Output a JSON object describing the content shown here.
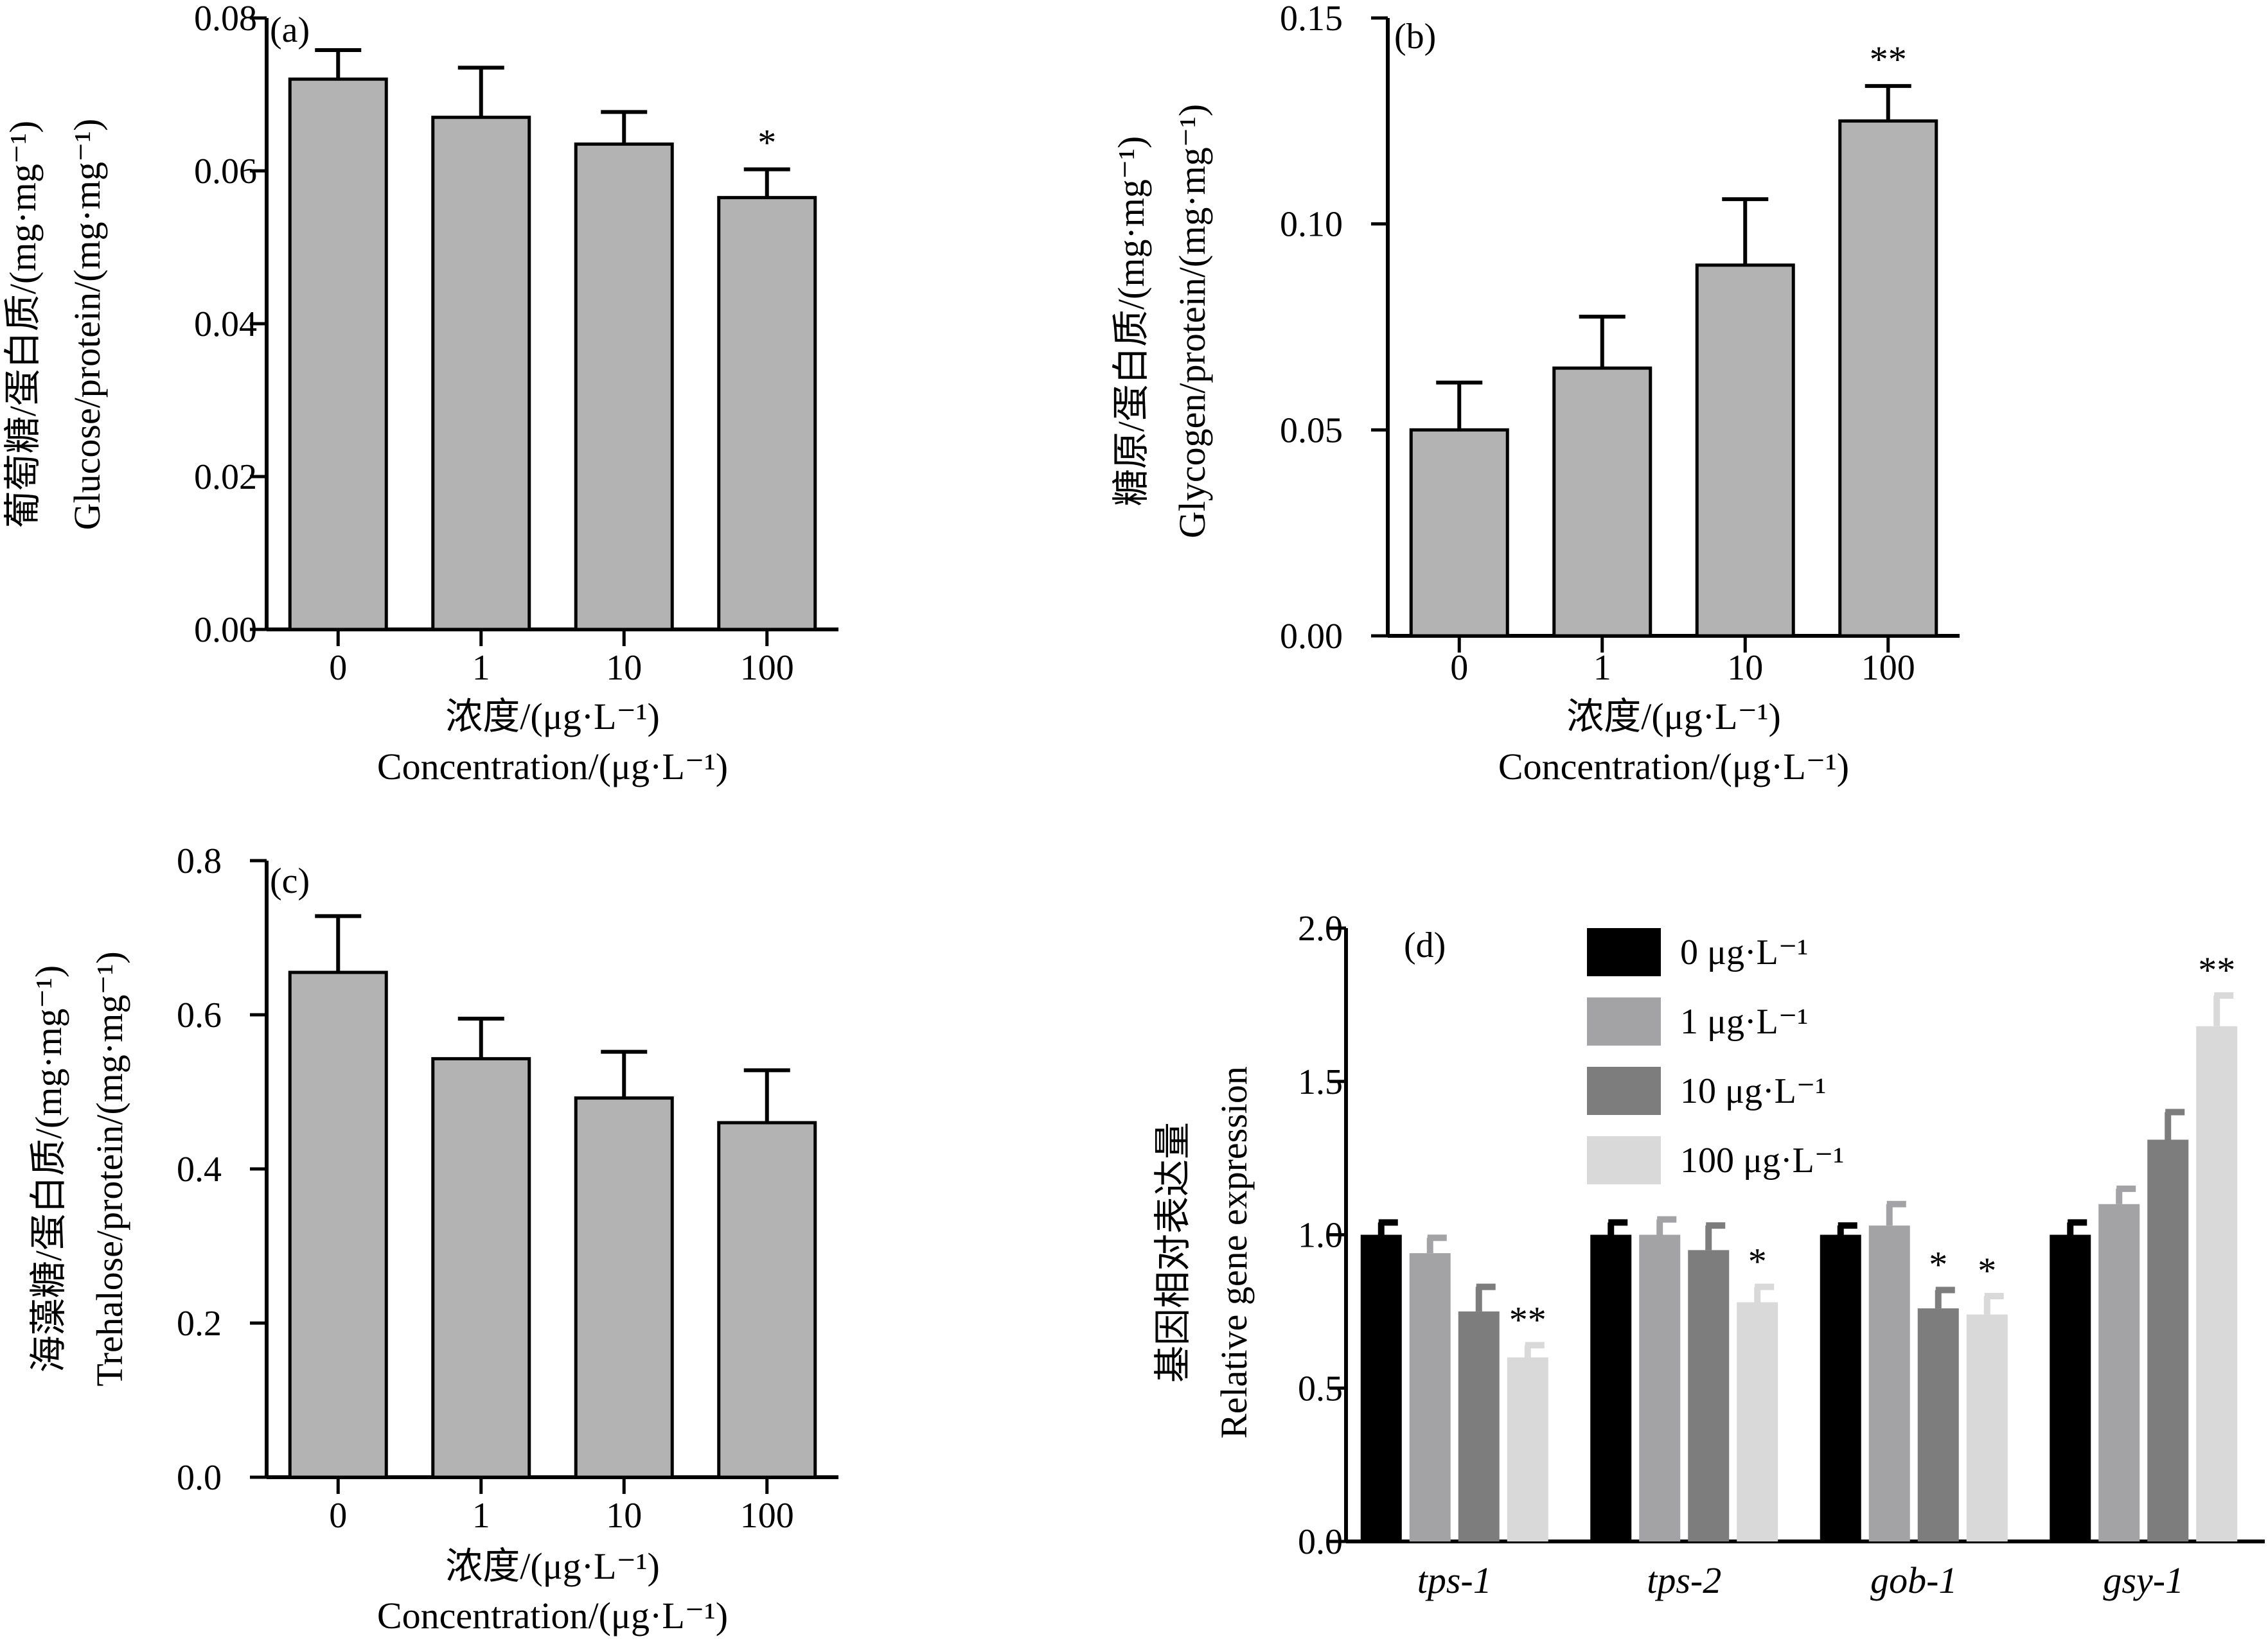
{
  "colors": {
    "bar": "#b3b3b3",
    "axis": "#000000"
  },
  "chart_data": [
    {
      "type": "bar",
      "panel": "(a)",
      "categories": [
        "0",
        "1",
        "10",
        "100"
      ],
      "values": [
        0.072,
        0.067,
        0.0635,
        0.0565
      ],
      "errors": [
        0.0038,
        0.0065,
        0.0042,
        0.0037
      ],
      "significance": [
        "",
        "",
        "",
        "*"
      ],
      "ylim": [
        0,
        0.08
      ],
      "yticks": [
        "0.00",
        "0.02",
        "0.04",
        "0.06",
        "0.08"
      ],
      "ylabel_cn": "葡萄糖/蛋白质/(mg·mg⁻¹)",
      "ylabel_en": "Glucose/protein/(mg·mg⁻¹)",
      "xlabel_cn": "浓度/(μg·L⁻¹)",
      "xlabel_en": "Concentration/(μg·L⁻¹)"
    },
    {
      "type": "bar",
      "panel": "(b)",
      "categories": [
        "0",
        "1",
        "10",
        "100"
      ],
      "values": [
        0.05,
        0.065,
        0.09,
        0.125
      ],
      "errors": [
        0.0115,
        0.0125,
        0.016,
        0.0085
      ],
      "significance": [
        "",
        "",
        "",
        "**"
      ],
      "ylim": [
        0,
        0.15
      ],
      "yticks": [
        "0.00",
        "0.05",
        "0.10",
        "0.15"
      ],
      "ylabel_cn": "糖原/蛋白质/(mg·mg⁻¹)",
      "ylabel_en": "Glycogen/protein/(mg·mg⁻¹)",
      "xlabel_cn": "浓度/(μg·L⁻¹)",
      "xlabel_en": "Concentration/(μg·L⁻¹)"
    },
    {
      "type": "bar",
      "panel": "(c)",
      "categories": [
        "0",
        "1",
        "10",
        "100"
      ],
      "values": [
        0.655,
        0.543,
        0.492,
        0.46
      ],
      "errors": [
        0.073,
        0.052,
        0.06,
        0.068
      ],
      "significance": [
        "",
        "",
        "",
        ""
      ],
      "ylim": [
        0,
        0.8
      ],
      "yticks": [
        "0.0",
        "0.2",
        "0.4",
        "0.6",
        "0.8"
      ],
      "ylabel_cn": "海藻糖/蛋白质/(mg·mg⁻¹)",
      "ylabel_en": "Trehalose/protein/(mg·mg⁻¹)",
      "xlabel_cn": "浓度/(μg·L⁻¹)",
      "xlabel_en": "Concentration/(μg·L⁻¹)"
    },
    {
      "type": "grouped-bar",
      "panel": "(d)",
      "categories": [
        "tps-1",
        "tps-2",
        "gob-1",
        "gsy-1"
      ],
      "series": [
        {
          "name": "0 μg·L⁻¹",
          "color": "#000000",
          "values": [
            1.0,
            1.0,
            1.0,
            1.0
          ],
          "errors": [
            0.04,
            0.04,
            0.03,
            0.04
          ],
          "significance": [
            "",
            "",
            "",
            ""
          ]
        },
        {
          "name": "1 μg·L⁻¹",
          "color": "#a3a3a6",
          "values": [
            0.94,
            1.0,
            1.03,
            1.1
          ],
          "errors": [
            0.05,
            0.05,
            0.07,
            0.05
          ],
          "significance": [
            "",
            "",
            "",
            ""
          ]
        },
        {
          "name": "10 μg·L⁻¹",
          "color": "#7d7d7d",
          "values": [
            0.75,
            0.95,
            0.76,
            1.31
          ],
          "errors": [
            0.08,
            0.08,
            0.06,
            0.09
          ],
          "significance": [
            "",
            "",
            "*",
            ""
          ]
        },
        {
          "name": "100 μg·L⁻¹",
          "color": "#d9d9d9",
          "values": [
            0.6,
            0.78,
            0.74,
            1.68
          ],
          "errors": [
            0.04,
            0.05,
            0.06,
            0.1
          ],
          "significance": [
            "**",
            "*",
            "*",
            "**"
          ]
        }
      ],
      "ylim": [
        0,
        2.0
      ],
      "yticks": [
        "0.0",
        "0.5",
        "1.0",
        "1.5",
        "2.0"
      ],
      "ylabel_cn": "基因相对表达量",
      "ylabel_en": "Relative gene expression",
      "legend_position": "top-right"
    }
  ]
}
